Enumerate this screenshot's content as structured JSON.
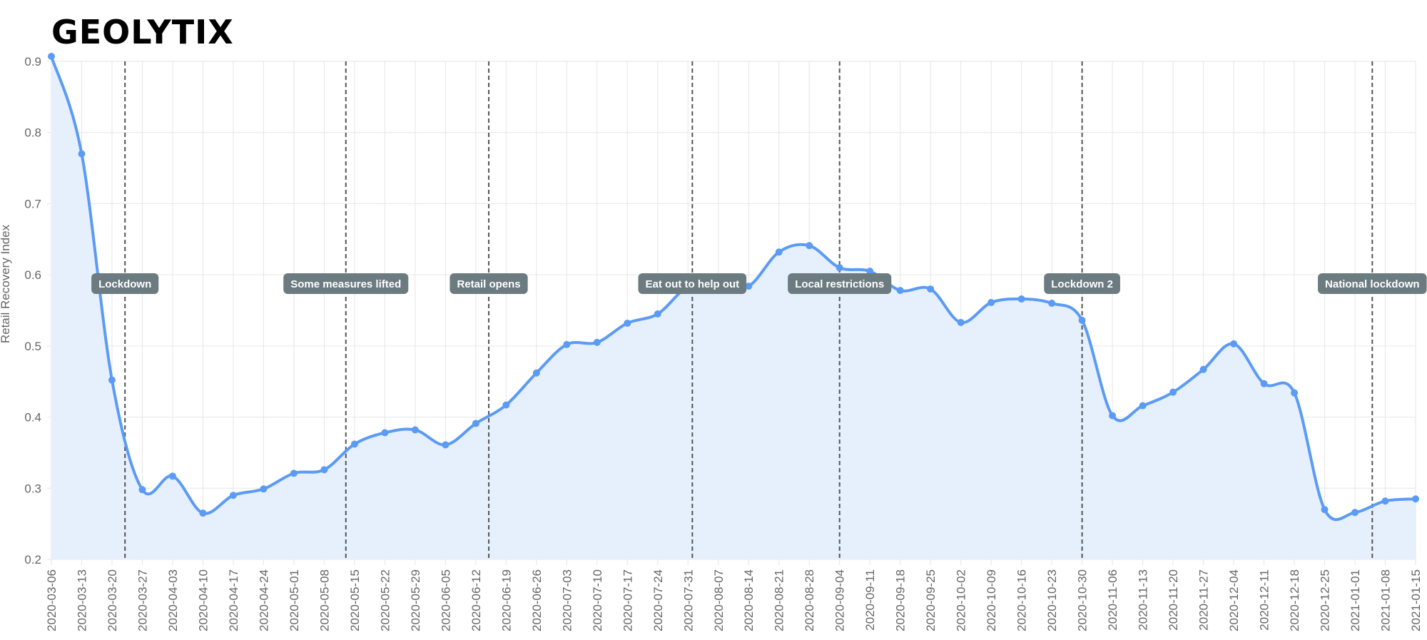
{
  "logo": {
    "text": "GEOLYTIX"
  },
  "colors": {
    "line": "#5b9bf5",
    "fill": "#e6effc",
    "grid": "#e6e6e6",
    "annotation_bg": "#6b7b80"
  },
  "chart_data": {
    "type": "line",
    "title": "",
    "ylabel": "Retail Recovery Index",
    "xlabel": "",
    "ylim": [
      0.2,
      0.9
    ],
    "yticks": [
      "0.2",
      "0.3",
      "0.4",
      "0.5",
      "0.6",
      "0.7",
      "0.8",
      "0.9"
    ],
    "grid": true,
    "area_fill": true,
    "categories": [
      "2020-03-06",
      "2020-03-13",
      "2020-03-20",
      "2020-03-27",
      "2020-04-03",
      "2020-04-10",
      "2020-04-17",
      "2020-04-24",
      "2020-05-01",
      "2020-05-08",
      "2020-05-15",
      "2020-05-22",
      "2020-05-29",
      "2020-06-05",
      "2020-06-12",
      "2020-06-19",
      "2020-06-26",
      "2020-07-03",
      "2020-07-10",
      "2020-07-17",
      "2020-07-24",
      "2020-07-31",
      "2020-08-07",
      "2020-08-14",
      "2020-08-21",
      "2020-08-28",
      "2020-09-04",
      "2020-09-11",
      "2020-09-18",
      "2020-09-25",
      "2020-10-02",
      "2020-10-09",
      "2020-10-16",
      "2020-10-23",
      "2020-10-30",
      "2020-11-06",
      "2020-11-13",
      "2020-11-20",
      "2020-11-27",
      "2020-12-04",
      "2020-12-11",
      "2020-12-18",
      "2020-12-25",
      "2021-01-01",
      "2021-01-08",
      "2021-01-15"
    ],
    "series": [
      {
        "values": [
          0.907,
          0.77,
          0.452,
          0.298,
          0.317,
          0.265,
          0.29,
          0.299,
          0.321,
          0.326,
          0.362,
          0.378,
          0.382,
          0.361,
          0.391,
          0.417,
          0.462,
          0.502,
          0.505,
          0.532,
          0.545,
          0.583,
          0.585,
          0.584,
          0.632,
          0.641,
          0.61,
          0.605,
          0.578,
          0.58,
          0.533,
          0.561,
          0.566,
          0.56,
          0.536,
          0.402,
          0.416,
          0.435,
          0.467,
          0.503,
          0.447,
          0.434,
          0.27,
          0.266,
          0.282,
          0.285
        ]
      }
    ],
    "annotations": [
      {
        "label": "Lockdown",
        "x": "2020-03-23"
      },
      {
        "label": "Some measures lifted",
        "x": "2020-05-13"
      },
      {
        "label": "Retail opens",
        "x": "2020-06-15"
      },
      {
        "label": "Eat out to help out",
        "x": "2020-08-01"
      },
      {
        "label": "Local restrictions",
        "x": "2020-09-04"
      },
      {
        "label": "Lockdown 2",
        "x": "2020-10-30"
      },
      {
        "label": "National lockdown",
        "x": "2021-01-05"
      }
    ]
  }
}
